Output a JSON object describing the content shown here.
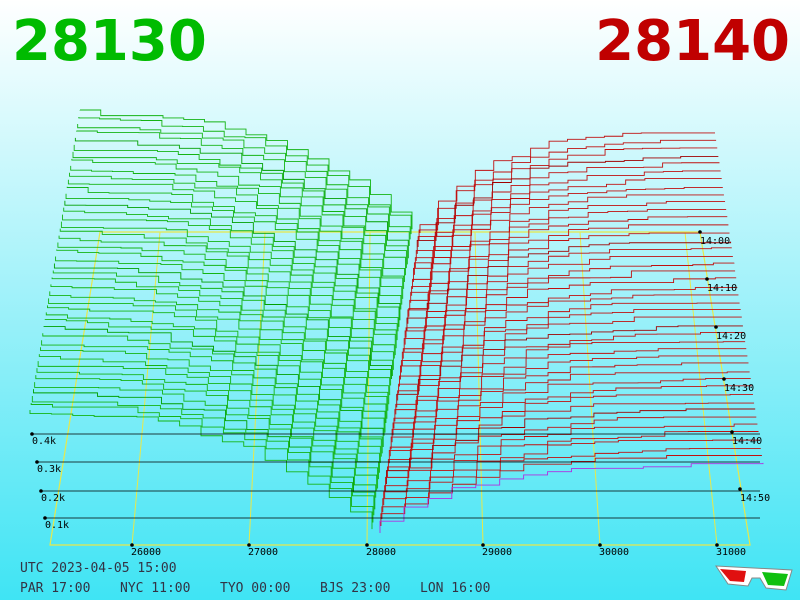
{
  "header": {
    "bid": "28130",
    "ask": "28140"
  },
  "axis": {
    "price_ticks": [
      "26000",
      "27000",
      "28000",
      "29000",
      "30000",
      "31000"
    ],
    "depth_ticks": [
      "0.4k",
      "0.3k",
      "0.2k",
      "0.1k"
    ],
    "time_ticks": [
      "14:00",
      "14:10",
      "14:20",
      "14:30",
      "14:40",
      "14:50"
    ]
  },
  "footer": {
    "utc": "UTC 2023-04-05 15:00",
    "clocks": [
      "PAR 17:00",
      "NYC 11:00",
      "TYO 00:00",
      "BJS 23:00",
      "LON 16:00"
    ]
  }
}
